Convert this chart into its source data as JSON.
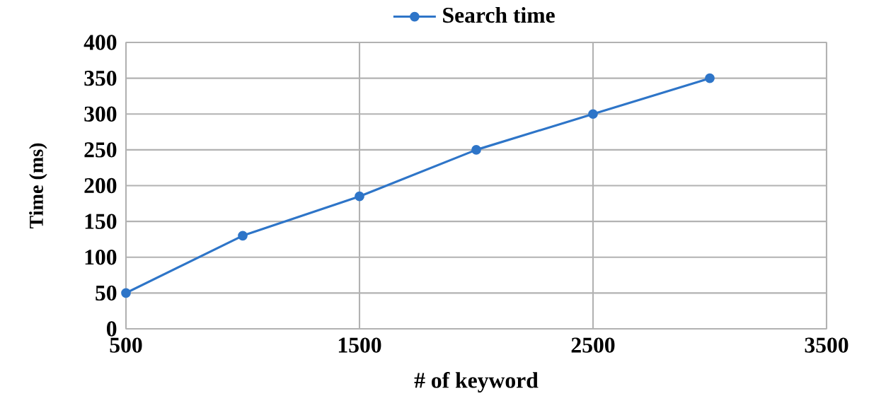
{
  "chart_data": {
    "type": "line",
    "xlabel": "#  of  keyword",
    "ylabel": "Time (ms)",
    "x": [
      500,
      1000,
      1500,
      2000,
      2500,
      3000
    ],
    "series": [
      {
        "name": "Search time",
        "color": "#2e75c8",
        "values": [
          50,
          130,
          185,
          250,
          300,
          350
        ]
      }
    ],
    "xlim": [
      500,
      3500
    ],
    "xticks": [
      500,
      1500,
      2500,
      3500
    ],
    "ylim": [
      0,
      400
    ],
    "yticks": [
      0,
      50,
      100,
      150,
      200,
      250,
      300,
      350,
      400
    ],
    "grid": true,
    "legend": "top",
    "marker": "circle",
    "line_style": "solid"
  }
}
